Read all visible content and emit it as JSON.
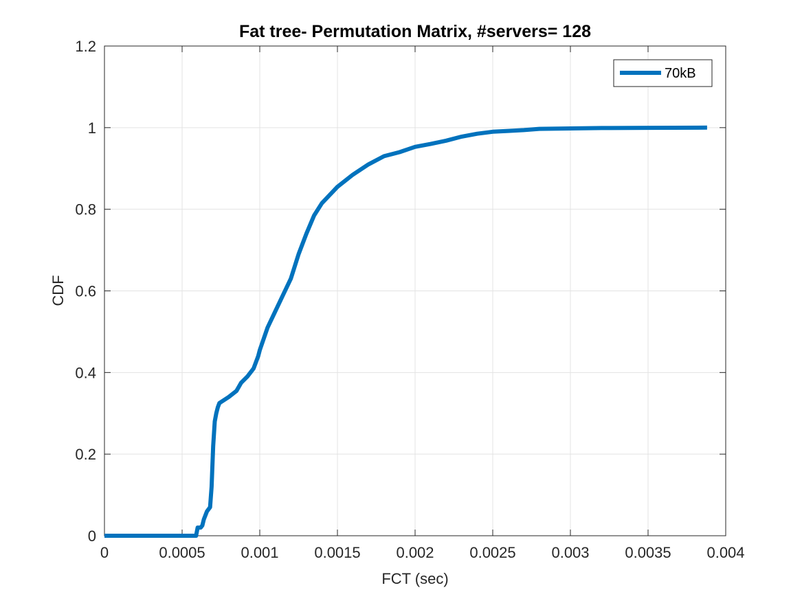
{
  "chart_data": {
    "type": "line",
    "title": "Fat tree- Permutation Matrix, #servers= 128",
    "xlabel": "FCT (sec)",
    "ylabel": "CDF",
    "xlim": [
      0,
      0.004
    ],
    "ylim": [
      0,
      1.2
    ],
    "grid": true,
    "legend_placement": "top-right",
    "x_ticks": [
      0,
      0.0005,
      0.001,
      0.0015,
      0.002,
      0.0025,
      0.003,
      0.0035,
      0.004
    ],
    "x_tick_labels": [
      "0",
      "0.0005",
      "0.001",
      "0.0015",
      "0.002",
      "0.0025",
      "0.003",
      "0.0035",
      "0.004"
    ],
    "y_ticks": [
      0,
      0.2,
      0.4,
      0.6,
      0.8,
      1,
      1.2
    ],
    "y_tick_labels": [
      "0",
      "0.2",
      "0.4",
      "0.6",
      "0.8",
      "1",
      "1.2"
    ],
    "series": [
      {
        "name": "70kB",
        "color": "#0072BD",
        "x": [
          0,
          0.0005,
          0.00059,
          0.0006,
          0.00062,
          0.00063,
          0.00064,
          0.00066,
          0.00068,
          0.00069,
          0.0007,
          0.00071,
          0.00072,
          0.00073,
          0.00074,
          0.00076,
          0.0008,
          0.00085,
          0.00088,
          0.00092,
          0.00096,
          0.00099,
          0.001,
          0.00105,
          0.0011,
          0.00115,
          0.0012,
          0.00125,
          0.0013,
          0.00135,
          0.0014,
          0.0015,
          0.0016,
          0.0017,
          0.0018,
          0.0019,
          0.002,
          0.0021,
          0.0022,
          0.0023,
          0.0024,
          0.0025,
          0.0026,
          0.0027,
          0.0028,
          0.003,
          0.0032,
          0.0035,
          0.00388
        ],
        "y": [
          0,
          0,
          0,
          0.02,
          0.02,
          0.025,
          0.04,
          0.06,
          0.07,
          0.12,
          0.22,
          0.28,
          0.3,
          0.315,
          0.325,
          0.33,
          0.34,
          0.355,
          0.375,
          0.39,
          0.41,
          0.44,
          0.455,
          0.51,
          0.55,
          0.59,
          0.63,
          0.69,
          0.74,
          0.785,
          0.815,
          0.855,
          0.885,
          0.91,
          0.93,
          0.94,
          0.953,
          0.96,
          0.968,
          0.978,
          0.985,
          0.99,
          0.992,
          0.994,
          0.997,
          0.998,
          0.999,
          0.9995,
          1.0
        ]
      }
    ]
  }
}
